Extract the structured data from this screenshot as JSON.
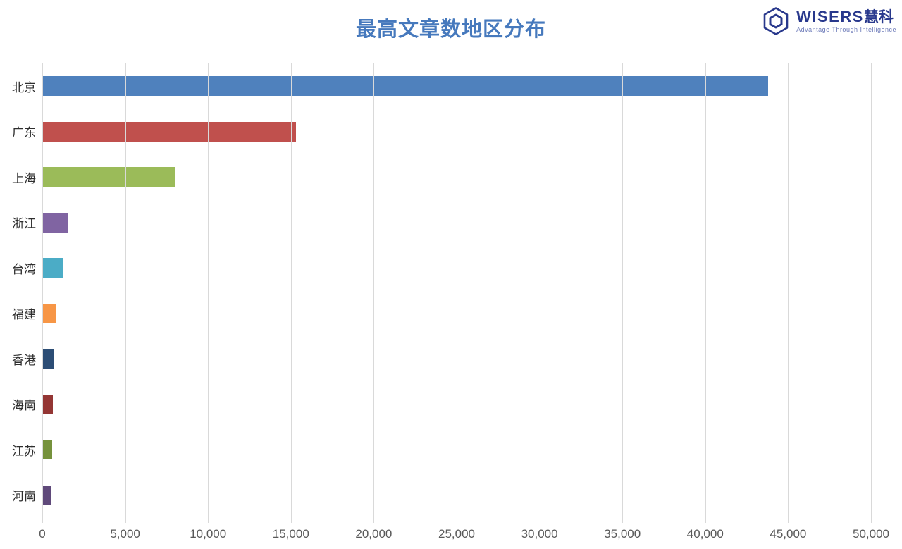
{
  "header": {
    "title": "最高文章数地区分布",
    "title_color": "#4679BD",
    "logo": {
      "brand": "WISERS",
      "brand_cjk": "慧科",
      "tagline": "Advantage Through Intelligence",
      "brand_color": "#28388C",
      "tagline_color": "#6B79B8"
    }
  },
  "chart_data": {
    "type": "bar",
    "orientation": "horizontal",
    "title": "最高文章数地区分布",
    "categories": [
      "北京",
      "广东",
      "上海",
      "浙江",
      "台湾",
      "福建",
      "香港",
      "海南",
      "江苏",
      "河南"
    ],
    "values": [
      43800,
      15300,
      8000,
      1550,
      1250,
      800,
      660,
      640,
      600,
      500
    ],
    "bar_colors": [
      "#4F81BD",
      "#C0504D",
      "#9BBB59",
      "#8064A2",
      "#4BACC6",
      "#F79646",
      "#2C4D75",
      "#943634",
      "#76923C",
      "#5F497A"
    ],
    "xlabel": "",
    "ylabel": "",
    "xlim": [
      0,
      50000
    ],
    "x_tick_step": 5000,
    "x_tick_labels": [
      "0",
      "5,000",
      "10,000",
      "15,000",
      "20,000",
      "25,000",
      "30,000",
      "35,000",
      "40,000",
      "45,000",
      "50,000"
    ],
    "grid": true,
    "gridline_color": "#D9D9D9",
    "axis_text_color": "#595959",
    "legend": "none"
  }
}
